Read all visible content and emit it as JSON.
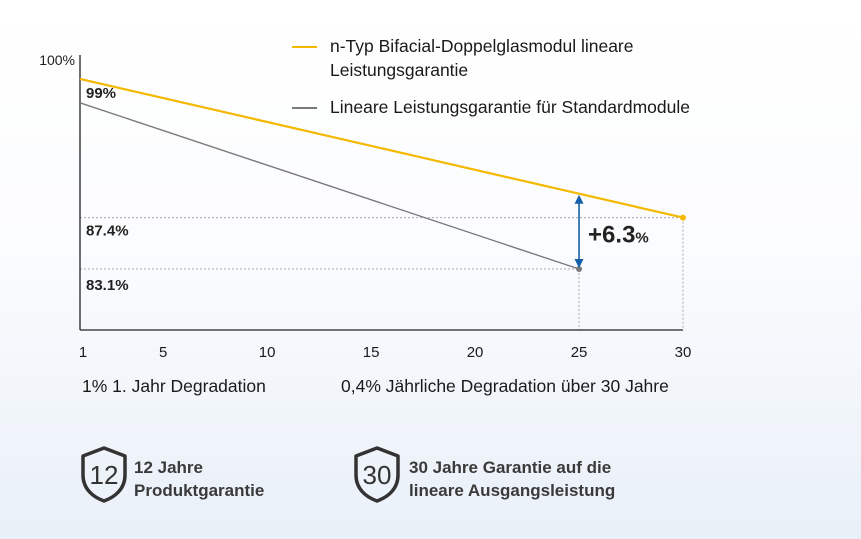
{
  "chart_data": {
    "type": "line",
    "x_ticks": [
      "1",
      "5",
      "10",
      "15",
      "20",
      "25",
      "30"
    ],
    "y_top_label": "100%",
    "xlim": [
      1,
      30
    ],
    "ylim": [
      78,
      101
    ],
    "series": [
      {
        "name": "n-Typ Bifacial-Doppelglasmodul lineare Leistungsgarantie",
        "color": "#f5b800",
        "x": [
          1,
          30
        ],
        "y": [
          99.0,
          87.4
        ]
      },
      {
        "name": "Lineare Leistungsgarantie für Standardmodule",
        "color": "#7a7a7a",
        "x": [
          1,
          25
        ],
        "y": [
          97.0,
          83.1
        ]
      }
    ],
    "value_labels": [
      "99%",
      "87.4%",
      "83.1%"
    ],
    "annotation": {
      "x": 25,
      "value": "+6.3",
      "unit": "%",
      "arrow_color": "#1560a8"
    }
  },
  "captions": {
    "left": "1% 1. Jahr Degradation",
    "right": "0,4% Jährliche Degradation über 30 Jahre"
  },
  "badges": [
    {
      "icon": "shield-12-icon",
      "number": "12",
      "line1": "12 Jahre",
      "line2": "Produktgarantie"
    },
    {
      "icon": "shield-30-icon",
      "number": "30",
      "line1": "30 Jahre Garantie auf die",
      "line2": "lineare Ausgangsleistung"
    }
  ]
}
